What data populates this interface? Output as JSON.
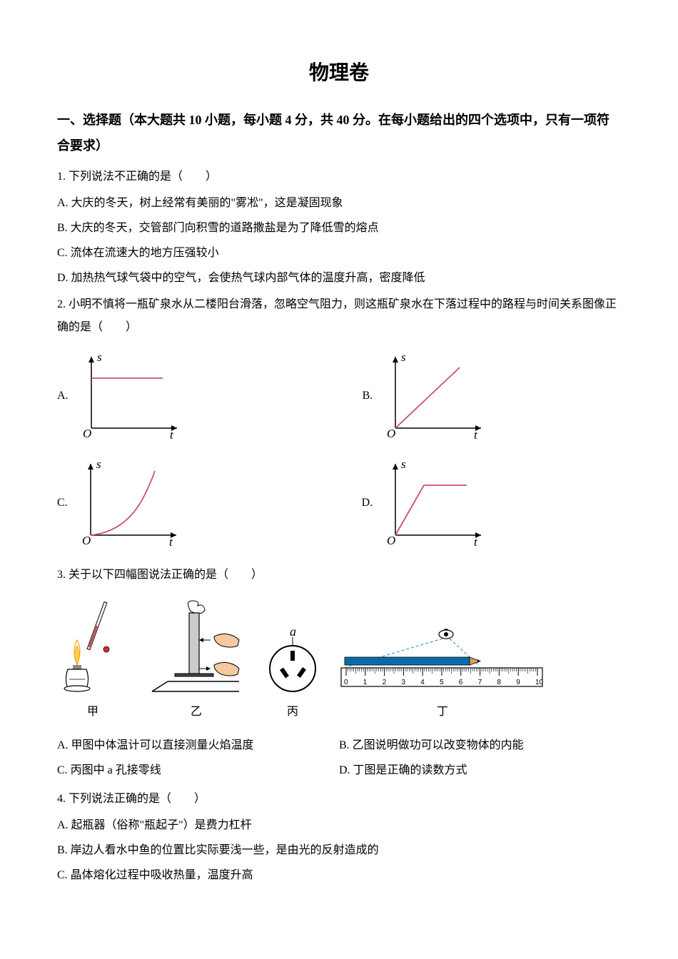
{
  "title": "物理卷",
  "section_header": "一、选择题（本大题共 10 小题，每小题 4 分，共 40 分。在每小题给出的四个选项中，只有一项符合要求）",
  "q1": {
    "stem": "1. 下列说法不正确的是（　　）",
    "A": "A. 大庆的冬天，树上经常有美丽的\"雾凇\"，这是凝固现象",
    "B": "B. 大庆的冬天，交管部门向积雪的道路撒盐是为了降低雪的熔点",
    "C": "C. 流体在流速大的地方压强较小",
    "D": "D. 加热热气球气袋中的空气，会使热气球内部气体的温度升高，密度降低"
  },
  "q2": {
    "stem": "2. 小明不慎将一瓶矿泉水从二楼阳台滑落，忽略空气阻力，则这瓶矿泉水在下落过程中的路程与时间关系图像正确的是（　　）",
    "labels": {
      "A": "A.",
      "B": "B.",
      "C": "C.",
      "D": "D."
    },
    "axis_y": "s",
    "axis_x": "t",
    "origin": "O",
    "graph_colors": {
      "axis": "#000000",
      "curve": "#d04a7a"
    }
  },
  "q3": {
    "stem": "3. 关于以下四幅图说法正确的是（　　）",
    "fig_labels": {
      "jia": "甲",
      "yi": "乙",
      "bing": "丙",
      "ding": "丁"
    },
    "bing_label": "a",
    "A": "A. 甲图中体温计可以直接测量火焰温度",
    "B": "B. 乙图说明做功可以改变物体的内能",
    "C": "C. 丙图中 a 孔接零线",
    "D": "D. 丁图是正确的读数方式",
    "ruler_ticks": [
      "0",
      "1",
      "2",
      "3",
      "4",
      "5",
      "6",
      "7",
      "8",
      "9",
      "10"
    ]
  },
  "q4": {
    "stem": "4. 下列说法正确的是（　　）",
    "A": "A.  起瓶器（俗称\"瓶起子\"）是费力杠杆",
    "B": "B.  岸边人看水中鱼的位置比实际要浅一些，是由光的反射造成的",
    "C": "C.  晶体熔化过程中吸收热量，温度升高"
  },
  "colors": {
    "text": "#000000",
    "bg": "#ffffff",
    "flame_orange": "#f5a623",
    "flame_yellow": "#f8d548",
    "thermometer_red": "#d32f2f",
    "curve_pink": "#d04a7a",
    "pencil_blue": "#0b6ba8",
    "pencil_tip": "#d4a05a",
    "eye_dash": "#3aa0d8",
    "skin": "#f5c9a0"
  }
}
